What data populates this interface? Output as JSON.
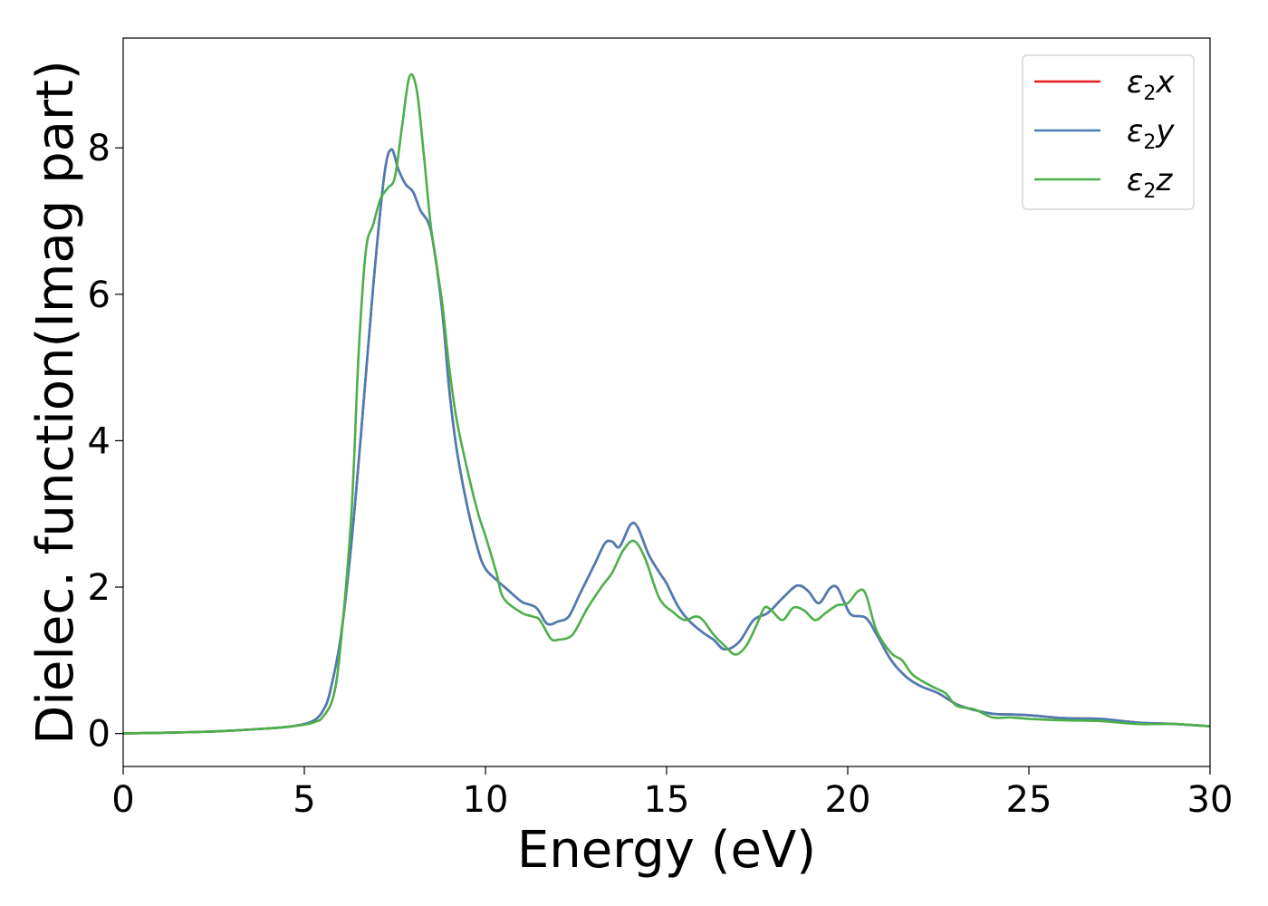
{
  "chart_data": {
    "type": "line",
    "title": "",
    "xlabel": "Energy (eV)",
    "ylabel": "Dielec. function(Imag part)",
    "xlim": [
      0,
      30
    ],
    "ylim": [
      -0.45,
      9.5
    ],
    "xticks": [
      0,
      5,
      10,
      15,
      20,
      25,
      30
    ],
    "yticks": [
      0,
      2,
      4,
      6,
      8
    ],
    "grid": false,
    "legend_position": "top-right",
    "series": [
      {
        "name": "ε2x",
        "legend_base": "ε",
        "legend_sub": "2",
        "legend_suffix": "x",
        "color": "#e41a1c",
        "points": [
          [
            0,
            0.0
          ],
          [
            2,
            0.02
          ],
          [
            3,
            0.04
          ],
          [
            4,
            0.07
          ],
          [
            4.5,
            0.09
          ],
          [
            5,
            0.13
          ],
          [
            5.3,
            0.19
          ],
          [
            5.5,
            0.3
          ],
          [
            5.7,
            0.55
          ],
          [
            6,
            1.3
          ],
          [
            6.3,
            2.6
          ],
          [
            6.6,
            4.3
          ],
          [
            6.9,
            6.1
          ],
          [
            7.2,
            7.6
          ],
          [
            7.4,
            7.98
          ],
          [
            7.6,
            7.7
          ],
          [
            7.8,
            7.5
          ],
          [
            8,
            7.4
          ],
          [
            8.2,
            7.15
          ],
          [
            8.5,
            6.85
          ],
          [
            8.8,
            5.8
          ],
          [
            9,
            4.7
          ],
          [
            9.2,
            3.9
          ],
          [
            9.5,
            3.1
          ],
          [
            9.8,
            2.5
          ],
          [
            10,
            2.25
          ],
          [
            10.3,
            2.1
          ],
          [
            10.6,
            1.97
          ],
          [
            11,
            1.8
          ],
          [
            11.4,
            1.72
          ],
          [
            11.7,
            1.5
          ],
          [
            12,
            1.53
          ],
          [
            12.3,
            1.6
          ],
          [
            12.6,
            1.9
          ],
          [
            13,
            2.3
          ],
          [
            13.3,
            2.6
          ],
          [
            13.5,
            2.62
          ],
          [
            13.7,
            2.55
          ],
          [
            14,
            2.85
          ],
          [
            14.2,
            2.82
          ],
          [
            14.5,
            2.45
          ],
          [
            14.8,
            2.2
          ],
          [
            15,
            2.05
          ],
          [
            15.3,
            1.75
          ],
          [
            15.6,
            1.55
          ],
          [
            16,
            1.38
          ],
          [
            16.3,
            1.28
          ],
          [
            16.6,
            1.15
          ],
          [
            17,
            1.25
          ],
          [
            17.4,
            1.55
          ],
          [
            17.8,
            1.65
          ],
          [
            18.2,
            1.85
          ],
          [
            18.6,
            2.02
          ],
          [
            18.9,
            1.95
          ],
          [
            19.2,
            1.78
          ],
          [
            19.5,
            1.98
          ],
          [
            19.7,
            2.0
          ],
          [
            19.9,
            1.8
          ],
          [
            20.1,
            1.62
          ],
          [
            20.5,
            1.58
          ],
          [
            20.8,
            1.35
          ],
          [
            21.2,
            1.0
          ],
          [
            21.6,
            0.78
          ],
          [
            22,
            0.65
          ],
          [
            22.5,
            0.55
          ],
          [
            23,
            0.4
          ],
          [
            23.5,
            0.32
          ],
          [
            24,
            0.27
          ],
          [
            24.5,
            0.26
          ],
          [
            25,
            0.25
          ],
          [
            26,
            0.21
          ],
          [
            27,
            0.2
          ],
          [
            28,
            0.15
          ],
          [
            29,
            0.13
          ],
          [
            30,
            0.1
          ]
        ]
      },
      {
        "name": "ε2y",
        "legend_base": "ε",
        "legend_sub": "2",
        "legend_suffix": "y",
        "color": "#4a7db5",
        "points": [
          [
            0,
            0.0
          ],
          [
            2,
            0.02
          ],
          [
            3,
            0.04
          ],
          [
            4,
            0.07
          ],
          [
            4.5,
            0.09
          ],
          [
            5,
            0.13
          ],
          [
            5.3,
            0.19
          ],
          [
            5.5,
            0.3
          ],
          [
            5.7,
            0.55
          ],
          [
            6,
            1.3
          ],
          [
            6.3,
            2.6
          ],
          [
            6.6,
            4.3
          ],
          [
            6.9,
            6.1
          ],
          [
            7.2,
            7.6
          ],
          [
            7.4,
            7.98
          ],
          [
            7.6,
            7.7
          ],
          [
            7.8,
            7.5
          ],
          [
            8,
            7.4
          ],
          [
            8.2,
            7.15
          ],
          [
            8.5,
            6.85
          ],
          [
            8.8,
            5.8
          ],
          [
            9,
            4.7
          ],
          [
            9.2,
            3.9
          ],
          [
            9.5,
            3.1
          ],
          [
            9.8,
            2.5
          ],
          [
            10,
            2.25
          ],
          [
            10.3,
            2.1
          ],
          [
            10.6,
            1.97
          ],
          [
            11,
            1.8
          ],
          [
            11.4,
            1.72
          ],
          [
            11.7,
            1.5
          ],
          [
            12,
            1.53
          ],
          [
            12.3,
            1.6
          ],
          [
            12.6,
            1.9
          ],
          [
            13,
            2.3
          ],
          [
            13.3,
            2.6
          ],
          [
            13.5,
            2.62
          ],
          [
            13.7,
            2.55
          ],
          [
            14,
            2.85
          ],
          [
            14.2,
            2.82
          ],
          [
            14.5,
            2.45
          ],
          [
            14.8,
            2.2
          ],
          [
            15,
            2.05
          ],
          [
            15.3,
            1.75
          ],
          [
            15.6,
            1.55
          ],
          [
            16,
            1.38
          ],
          [
            16.3,
            1.28
          ],
          [
            16.6,
            1.15
          ],
          [
            17,
            1.25
          ],
          [
            17.4,
            1.55
          ],
          [
            17.8,
            1.65
          ],
          [
            18.2,
            1.85
          ],
          [
            18.6,
            2.02
          ],
          [
            18.9,
            1.95
          ],
          [
            19.2,
            1.78
          ],
          [
            19.5,
            1.98
          ],
          [
            19.7,
            2.0
          ],
          [
            19.9,
            1.8
          ],
          [
            20.1,
            1.62
          ],
          [
            20.5,
            1.58
          ],
          [
            20.8,
            1.35
          ],
          [
            21.2,
            1.0
          ],
          [
            21.6,
            0.78
          ],
          [
            22,
            0.65
          ],
          [
            22.5,
            0.55
          ],
          [
            23,
            0.4
          ],
          [
            23.5,
            0.32
          ],
          [
            24,
            0.27
          ],
          [
            24.5,
            0.26
          ],
          [
            25,
            0.25
          ],
          [
            26,
            0.21
          ],
          [
            27,
            0.2
          ],
          [
            28,
            0.15
          ],
          [
            29,
            0.13
          ],
          [
            30,
            0.1
          ]
        ]
      },
      {
        "name": "ε2z",
        "legend_base": "ε",
        "legend_sub": "2",
        "legend_suffix": "z",
        "color": "#4daf4a",
        "points": [
          [
            0,
            0.0
          ],
          [
            2,
            0.02
          ],
          [
            3,
            0.04
          ],
          [
            4,
            0.07
          ],
          [
            4.5,
            0.09
          ],
          [
            5,
            0.12
          ],
          [
            5.3,
            0.16
          ],
          [
            5.5,
            0.22
          ],
          [
            5.8,
            0.5
          ],
          [
            6,
            1.2
          ],
          [
            6.3,
            3.0
          ],
          [
            6.5,
            5.2
          ],
          [
            6.7,
            6.6
          ],
          [
            6.9,
            6.95
          ],
          [
            7.1,
            7.3
          ],
          [
            7.3,
            7.45
          ],
          [
            7.5,
            7.6
          ],
          [
            7.7,
            8.3
          ],
          [
            7.9,
            8.97
          ],
          [
            8.1,
            8.8
          ],
          [
            8.3,
            7.9
          ],
          [
            8.5,
            6.9
          ],
          [
            8.8,
            5.9
          ],
          [
            9,
            5.0
          ],
          [
            9.2,
            4.3
          ],
          [
            9.5,
            3.6
          ],
          [
            9.8,
            3.0
          ],
          [
            10,
            2.7
          ],
          [
            10.3,
            2.2
          ],
          [
            10.5,
            1.85
          ],
          [
            11,
            1.65
          ],
          [
            11.3,
            1.6
          ],
          [
            11.5,
            1.55
          ],
          [
            11.8,
            1.3
          ],
          [
            12,
            1.28
          ],
          [
            12.4,
            1.35
          ],
          [
            12.8,
            1.7
          ],
          [
            13.2,
            2.0
          ],
          [
            13.5,
            2.2
          ],
          [
            13.8,
            2.5
          ],
          [
            14.1,
            2.63
          ],
          [
            14.4,
            2.4
          ],
          [
            14.8,
            1.85
          ],
          [
            15.2,
            1.65
          ],
          [
            15.5,
            1.55
          ],
          [
            15.8,
            1.6
          ],
          [
            16,
            1.55
          ],
          [
            16.3,
            1.35
          ],
          [
            16.6,
            1.2
          ],
          [
            16.9,
            1.08
          ],
          [
            17.2,
            1.2
          ],
          [
            17.5,
            1.5
          ],
          [
            17.7,
            1.72
          ],
          [
            17.9,
            1.68
          ],
          [
            18.2,
            1.55
          ],
          [
            18.5,
            1.72
          ],
          [
            18.8,
            1.68
          ],
          [
            19.1,
            1.55
          ],
          [
            19.4,
            1.65
          ],
          [
            19.7,
            1.75
          ],
          [
            20,
            1.78
          ],
          [
            20.3,
            1.95
          ],
          [
            20.5,
            1.9
          ],
          [
            20.8,
            1.4
          ],
          [
            21.2,
            1.1
          ],
          [
            21.5,
            1.0
          ],
          [
            21.8,
            0.8
          ],
          [
            22.3,
            0.65
          ],
          [
            22.7,
            0.55
          ],
          [
            23,
            0.38
          ],
          [
            23.5,
            0.33
          ],
          [
            24,
            0.22
          ],
          [
            24.5,
            0.22
          ],
          [
            25,
            0.2
          ],
          [
            26,
            0.18
          ],
          [
            27,
            0.17
          ],
          [
            28,
            0.13
          ],
          [
            29,
            0.13
          ],
          [
            30,
            0.1
          ]
        ]
      }
    ]
  }
}
